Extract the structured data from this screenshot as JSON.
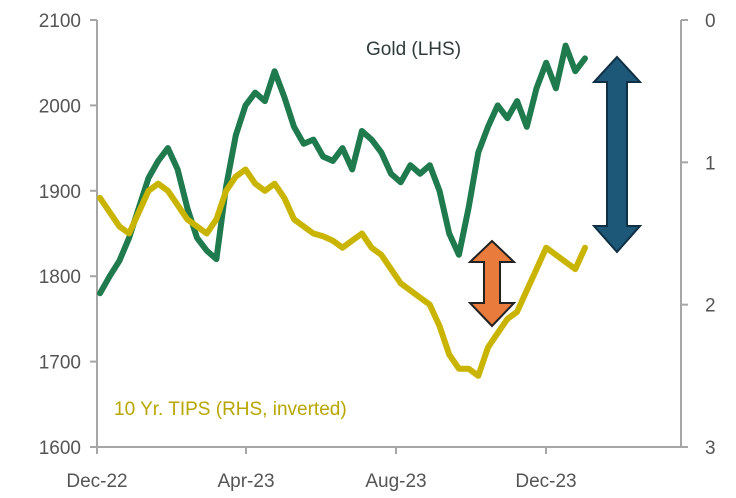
{
  "chart_data": {
    "type": "line",
    "title": "",
    "x_ticks": [
      "Dec-22",
      "Apr-23",
      "Aug-23",
      "Dec-23"
    ],
    "left_axis": {
      "label": "Gold (LHS)",
      "ticks": [
        "1600",
        "1700",
        "1800",
        "1900",
        "2000",
        "2100"
      ],
      "range": [
        1600,
        2100
      ]
    },
    "right_axis": {
      "label": "10 Yr. TIPS (RHS, inverted)",
      "ticks": [
        "0",
        "1",
        "2",
        "3"
      ],
      "range": [
        0,
        3
      ],
      "inverted": true
    },
    "series": [
      {
        "name": "Gold (LHS)",
        "axis": "left",
        "color": "#1f7a4d",
        "x": [
          0,
          0.25,
          0.5,
          0.75,
          1,
          1.25,
          1.5,
          1.75,
          2,
          2.25,
          2.5,
          2.75,
          3,
          3.25,
          3.5,
          3.75,
          4,
          4.25,
          4.5,
          4.75,
          5,
          5.25,
          5.5,
          5.75,
          6,
          6.25,
          6.5,
          6.75,
          7,
          7.25,
          7.5,
          7.75,
          8,
          8.25,
          8.5,
          8.75,
          9,
          9.25,
          9.5,
          9.75,
          10,
          10.25,
          10.5,
          10.75,
          11,
          11.25,
          11.5,
          11.75,
          12,
          12.25,
          12.5
        ],
        "values": [
          1780,
          1800,
          1818,
          1845,
          1880,
          1915,
          1935,
          1950,
          1925,
          1880,
          1845,
          1830,
          1820,
          1905,
          1965,
          2000,
          2015,
          2005,
          2040,
          2010,
          1975,
          1955,
          1960,
          1940,
          1935,
          1950,
          1925,
          1970,
          1960,
          1945,
          1920,
          1910,
          1930,
          1920,
          1930,
          1900,
          1850,
          1825,
          1880,
          1945,
          1975,
          2000,
          1985,
          2005,
          1975,
          2020,
          2050,
          2020,
          2070,
          2040,
          2055
        ]
      },
      {
        "name": "10 Yr. TIPS (RHS, inverted)",
        "axis": "right",
        "color": "#c9b400",
        "x": [
          0,
          0.25,
          0.5,
          0.75,
          1,
          1.25,
          1.5,
          1.75,
          2,
          2.25,
          2.5,
          2.75,
          3,
          3.25,
          3.5,
          3.75,
          4,
          4.25,
          4.5,
          4.75,
          5,
          5.25,
          5.5,
          5.75,
          6,
          6.25,
          6.5,
          6.75,
          7,
          7.25,
          7.5,
          7.75,
          8,
          8.25,
          8.5,
          8.75,
          9,
          9.25,
          9.5,
          9.75,
          10,
          10.25,
          10.5,
          10.75,
          11,
          11.25,
          11.5,
          11.75,
          12,
          12.25,
          12.5
        ],
        "values": [
          1.25,
          1.35,
          1.45,
          1.5,
          1.35,
          1.2,
          1.15,
          1.2,
          1.3,
          1.4,
          1.45,
          1.5,
          1.4,
          1.2,
          1.1,
          1.05,
          1.15,
          1.2,
          1.15,
          1.25,
          1.4,
          1.45,
          1.5,
          1.52,
          1.55,
          1.6,
          1.55,
          1.5,
          1.6,
          1.65,
          1.75,
          1.85,
          1.9,
          1.95,
          2.0,
          2.15,
          2.35,
          2.45,
          2.45,
          2.5,
          2.3,
          2.2,
          2.1,
          2.05,
          1.9,
          1.75,
          1.6,
          1.65,
          1.7,
          1.75,
          1.6
        ]
      }
    ],
    "annotations": [
      "Gold (LHS)",
      "10 Yr. TIPS (RHS, inverted)"
    ],
    "grid": false
  }
}
